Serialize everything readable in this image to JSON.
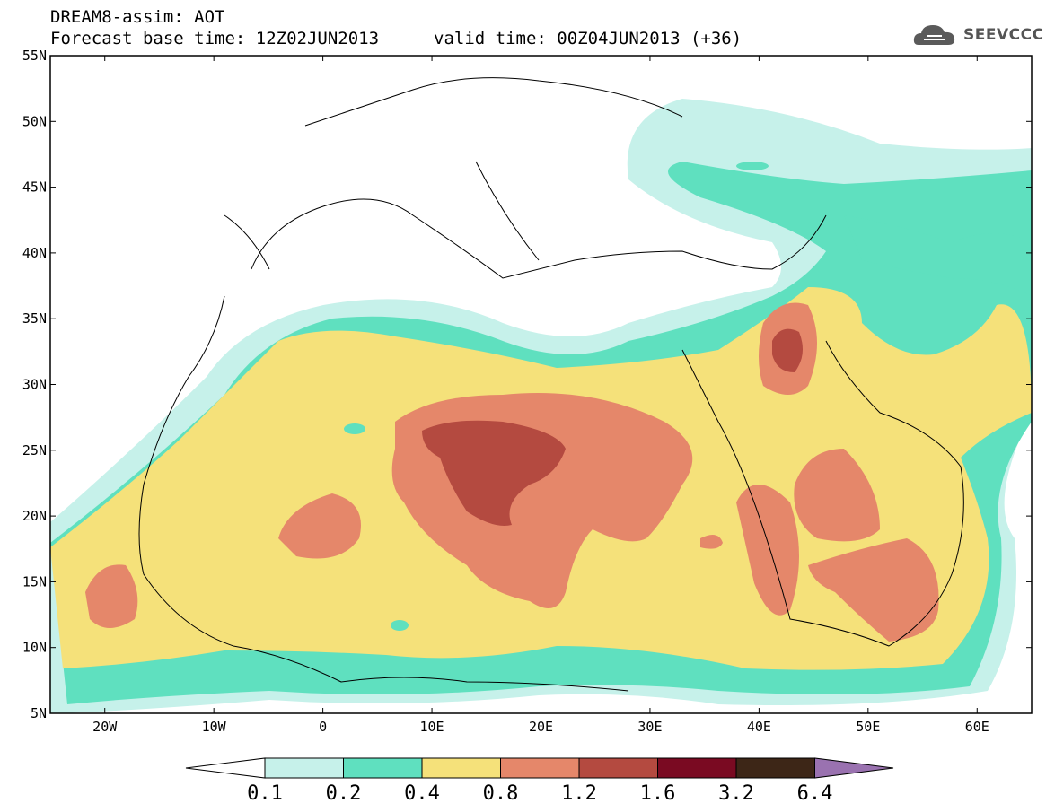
{
  "header": {
    "title": "DREAM8-assim: AOT",
    "base_time": "Forecast base time: 12Z02JUN2013",
    "valid_time": "valid time: 00Z04JUN2013 (+36)"
  },
  "logo": {
    "text": "SEEVCCC",
    "icon": "cloud-icon"
  },
  "map": {
    "lat_labels": [
      "55N",
      "50N",
      "45N",
      "40N",
      "35N",
      "30N",
      "25N",
      "20N",
      "15N",
      "10N",
      "5N"
    ],
    "lon_labels": [
      "20W",
      "10W",
      "0",
      "10E",
      "20E",
      "30E",
      "40E",
      "50E",
      "60E"
    ],
    "lat_range": [
      5,
      55
    ],
    "lon_range": [
      -25,
      65
    ]
  },
  "colorbar": {
    "labels": [
      "0.1",
      "0.2",
      "0.4",
      "0.8",
      "1.2",
      "1.6",
      "3.2",
      "6.4"
    ],
    "colors": [
      "#ffffff",
      "#c6f1ea",
      "#5fe0bf",
      "#f5e17a",
      "#e5876a",
      "#b44a40",
      "#7a0a22",
      "#3d2617",
      "#9a72b0"
    ]
  },
  "chart_data": {
    "type": "heatmap",
    "variable": "AOT",
    "levels": [
      0.1,
      0.2,
      0.4,
      0.8,
      1.2,
      1.6,
      3.2,
      6.4
    ]
  }
}
